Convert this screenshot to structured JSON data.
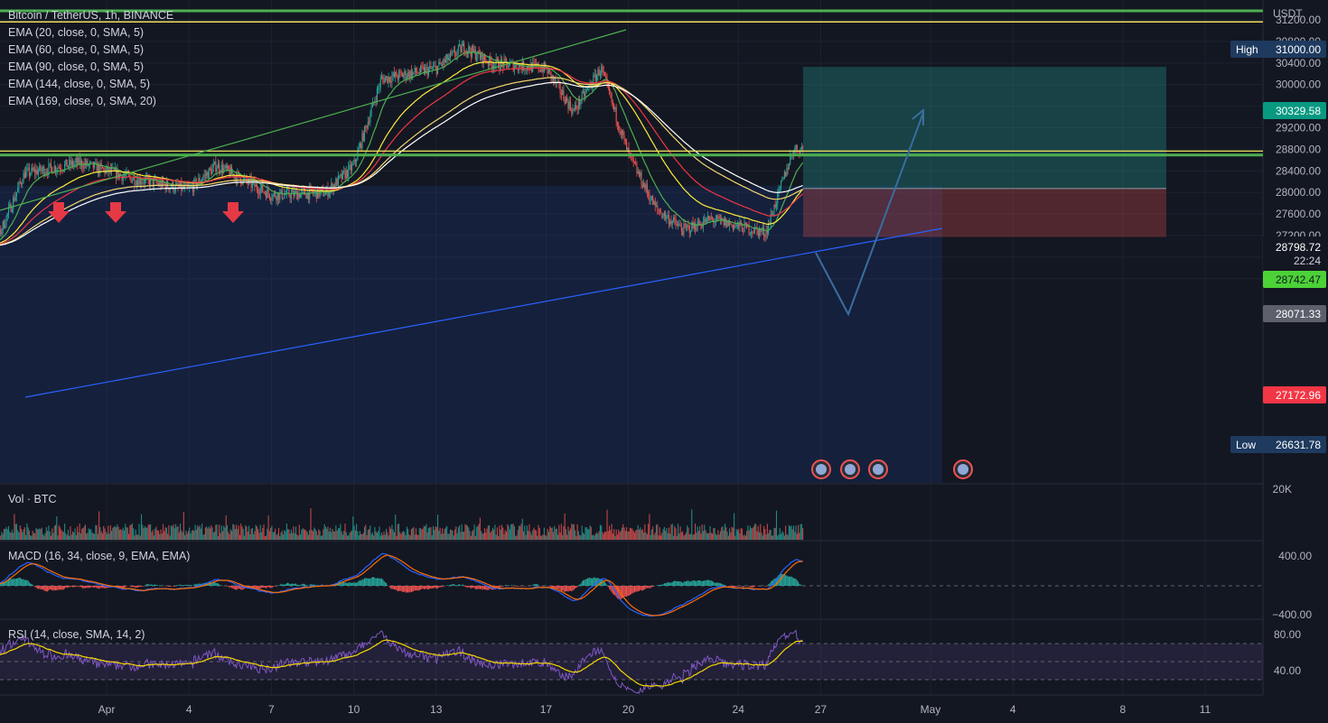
{
  "header": {
    "symbol": "Bitcoin / TetherUS, 1h, BINANCE",
    "currency": "USDT",
    "indicators": [
      "EMA (20, close, 0, SMA, 5)",
      "EMA (60, close, 0, SMA, 5)",
      "EMA (90, close, 0, SMA, 5)",
      "EMA (144, close, 0, SMA, 5)",
      "EMA (169, close, 0, SMA, 20)"
    ]
  },
  "panes": {
    "volume_title": "Vol · BTC",
    "macd_title": "MACD (16, 34, close, 9, EMA, EMA)",
    "rsi_title": "RSI (14, close, SMA, 14, 2)"
  },
  "chart_data": {
    "type": "candlestick",
    "price_axis": {
      "ticks": [
        "31200.00",
        "30800.00",
        "30400.00",
        "30000.00",
        "29600.00",
        "29200.00",
        "28800.00",
        "28400.00",
        "28000.00",
        "27600.00",
        "27200.00",
        "26800.00",
        "26400.00"
      ],
      "ylim": [
        26400,
        31280
      ]
    },
    "x_axis": {
      "ticks": [
        "Apr",
        "4",
        "7",
        "10",
        "13",
        "17",
        "20",
        "24",
        "27",
        "May",
        "4",
        "8",
        "11"
      ]
    },
    "markers": {
      "high_label": "High",
      "high_value": "31000.00",
      "low_label": "Low",
      "low_value": "26631.78",
      "target_value": "30329.58",
      "current_value": "28798.72",
      "countdown": "22:24",
      "ema_value": "28742.47",
      "entry_value": "28071.33",
      "stop_value": "27172.96"
    },
    "key_levels": [
      31200,
      31130,
      28800,
      28760
    ],
    "position": {
      "entry": 28071.33,
      "target": 30329.58,
      "stop": 27172.96
    },
    "price_path_keypoints": [
      {
        "t": "Mar 28",
        "p": 27100
      },
      {
        "t": "Mar 29",
        "p": 28350
      },
      {
        "t": "Mar 31",
        "p": 28550
      },
      {
        "t": "Apr 2",
        "p": 28250
      },
      {
        "t": "Apr 4",
        "p": 28050
      },
      {
        "t": "Apr 5",
        "p": 28500
      },
      {
        "t": "Apr 7",
        "p": 27950
      },
      {
        "t": "Apr 9",
        "p": 28000
      },
      {
        "t": "Apr 10",
        "p": 28500
      },
      {
        "t": "Apr 11",
        "p": 30100
      },
      {
        "t": "Apr 13",
        "p": 30300
      },
      {
        "t": "Apr 14",
        "p": 30700
      },
      {
        "t": "Apr 15",
        "p": 30400
      },
      {
        "t": "Apr 17",
        "p": 30300
      },
      {
        "t": "Apr 18",
        "p": 29500
      },
      {
        "t": "Apr 19",
        "p": 30300
      },
      {
        "t": "Apr 20",
        "p": 28700
      },
      {
        "t": "Apr 21",
        "p": 27700
      },
      {
        "t": "Apr 22",
        "p": 27300
      },
      {
        "t": "Apr 23",
        "p": 27500
      },
      {
        "t": "Apr 25",
        "p": 27250
      },
      {
        "t": "Apr 26",
        "p": 28800
      }
    ],
    "volume_axis": {
      "ticks": [
        "20K"
      ]
    },
    "macd_axis": {
      "ticks": [
        "400.00",
        "−400.00"
      ]
    },
    "rsi_axis": {
      "ticks": [
        "80.00",
        "40.00"
      ]
    }
  },
  "colors": {
    "background": "#131722",
    "up": "#26a69a",
    "down": "#ef5350",
    "ema20": "#4caf50",
    "ema60": "#ffeb3b",
    "ema90": "#f23645",
    "ema144": "#f5d76e",
    "ema169": "#ffffff",
    "resistance": "#4caf50",
    "support": "#f0e05a",
    "trend_up": "#4caf50",
    "trend_low": "#2962ff"
  }
}
